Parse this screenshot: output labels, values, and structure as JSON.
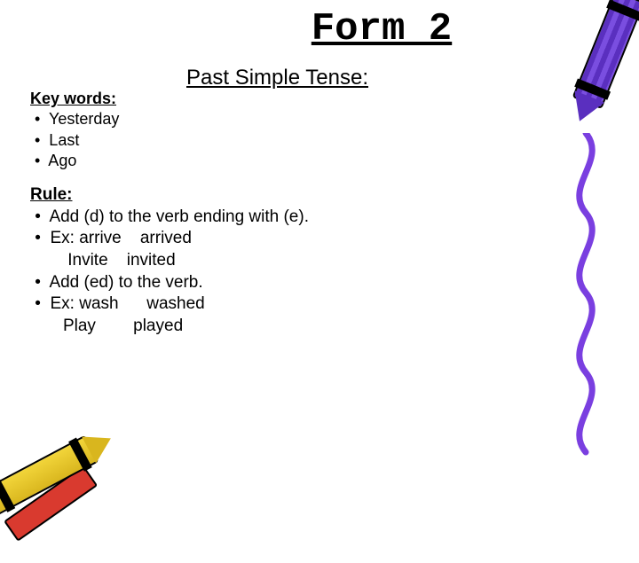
{
  "title": "Form 2",
  "subtitle": "Past Simple Tense:",
  "keywords": {
    "heading": "Key words:",
    "items": [
      "Yesterday",
      "Last",
      "Ago"
    ]
  },
  "rules": {
    "heading": "Rule:",
    "lines": [
      "Add (d) to the verb ending with (e).",
      "Ex: arrive    arrived",
      "        Invite    invited",
      "Add (ed) to the verb.",
      "Ex: wash      washed",
      "       Play        played"
    ],
    "bulleted": [
      true,
      true,
      false,
      true,
      true,
      false
    ]
  },
  "colors": {
    "squiggle": "#7a3fe0",
    "crayon_purple": "#5a2fbf",
    "crayon_yellow": "#f2d53a",
    "crayon_red": "#d93a2f",
    "text": "#000000",
    "background": "#ffffff"
  },
  "fonts": {
    "title_family": "Courier New",
    "body_family": "Comic Sans MS",
    "title_size_pt": 33,
    "subtitle_size_pt": 18,
    "body_size_pt": 14
  }
}
